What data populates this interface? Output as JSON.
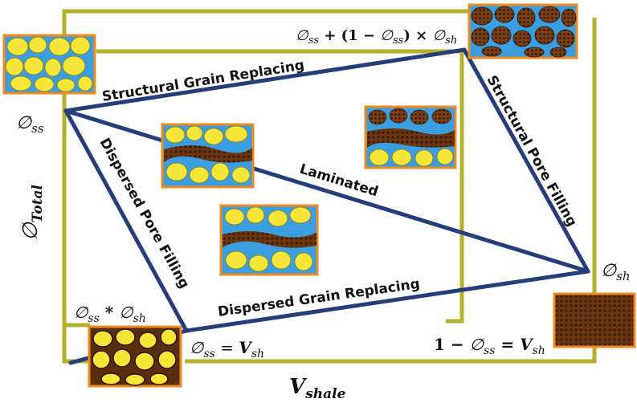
{
  "title": "",
  "axes": {
    "x_label": "V",
    "x_label_sub": "shale",
    "y_label": "∅",
    "y_label_sub": "Total"
  },
  "points": {
    "clean_sand": {
      "sym": "∅",
      "sub": "ss"
    },
    "shale": {
      "sym": "∅",
      "sub": "sh"
    },
    "dispersed_min": {
      "a": "∅",
      "a_sub": "ss",
      "op": " * ",
      "b": "∅",
      "b_sub": "sh"
    },
    "structural_max": {
      "a": "∅",
      "a_sub": "ss",
      "mid": " + (1 − ",
      "b": "∅",
      "b_sub": "ss",
      "op": ") × ",
      "c": "∅",
      "c_sub": "sh"
    }
  },
  "vshale_marks": {
    "left": {
      "a": "∅",
      "a_sub": "ss",
      "eq": " = ",
      "b": "V",
      "b_sub": "sh"
    },
    "right": {
      "pre": "1 − ",
      "a": "∅",
      "a_sub": "ss",
      "eq": " = ",
      "b": "V",
      "b_sub": "sh"
    }
  },
  "edges": {
    "structural_grain": "Structural Grain Replacing",
    "structural_pore": "Structural Pore Filling",
    "laminated": "Laminated",
    "dispersed_pore": "Dispersed Pore Filling",
    "dispersed_grain": "Dispersed Grain Replacing"
  },
  "colors": {
    "frame": "#b3b22a",
    "line": "#253d7a",
    "pore": "#3a9ee0",
    "grain": "#f7e63a",
    "grain_edge": "#8a7a10",
    "shale": "#5a2d0c",
    "border": "#f08a1c"
  },
  "icons": [
    "sandstone-icon",
    "shale-grain-icon",
    "laminated-icon",
    "dispersed-icon",
    "shale-icon"
  ]
}
